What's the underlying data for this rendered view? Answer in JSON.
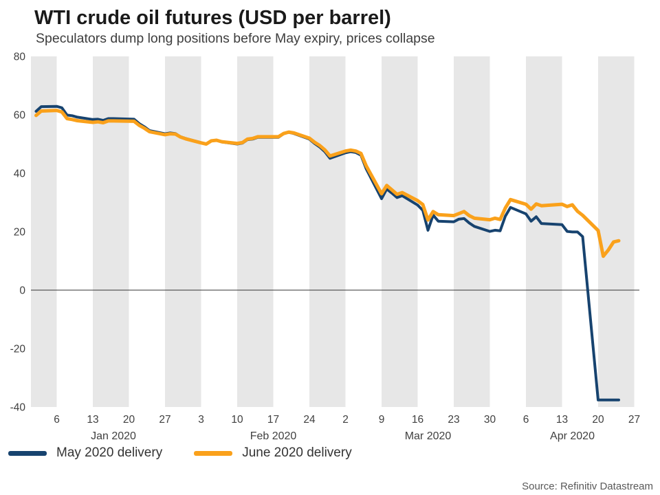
{
  "header": {
    "title": "WTI crude oil futures (USD per barrel)",
    "subtitle": "Speculators dump long positions before May expiry, prices collapse"
  },
  "source": "Source: Refinitiv Datastream",
  "chart_data": {
    "type": "line",
    "title": "WTI crude oil futures (USD per barrel)",
    "subtitle": "Speculators dump long positions before May expiry, prices collapse",
    "ylim": [
      -40,
      80
    ],
    "yticks": [
      80,
      60,
      40,
      20,
      0,
      -20,
      -40
    ],
    "grid": "alternating weekly vertical bands",
    "legend_position": "bottom-left",
    "colors": {
      "band": "#e7e7e7",
      "zero_line": "#333333",
      "tick_text": "#404040"
    },
    "xticks": [
      {
        "label": "6",
        "date": "Jan 6"
      },
      {
        "label": "13",
        "date": "Jan 13"
      },
      {
        "label": "20",
        "date": "Jan 20"
      },
      {
        "label": "27",
        "date": "Jan 27"
      },
      {
        "label": "3",
        "date": "Feb 3"
      },
      {
        "label": "10",
        "date": "Feb 10"
      },
      {
        "label": "17",
        "date": "Feb 17"
      },
      {
        "label": "24",
        "date": "Feb 24"
      },
      {
        "label": "2",
        "date": "Mar 2"
      },
      {
        "label": "9",
        "date": "Mar 9"
      },
      {
        "label": "16",
        "date": "Mar 16"
      },
      {
        "label": "23",
        "date": "Mar 23"
      },
      {
        "label": "30",
        "date": "Mar 30"
      },
      {
        "label": "6",
        "date": "Apr 6"
      },
      {
        "label": "13",
        "date": "Apr 13"
      },
      {
        "label": "20",
        "date": "Apr 20"
      },
      {
        "label": "27",
        "date": "Apr 27"
      }
    ],
    "month_labels": [
      {
        "label": "Jan 2020",
        "date": "Jan 17"
      },
      {
        "label": "Feb 2020",
        "date": "Feb 17"
      },
      {
        "label": "Mar 2020",
        "date": "Mar 18"
      },
      {
        "label": "Apr 2020",
        "date": "Apr 15"
      }
    ],
    "dates": [
      "Jan 2",
      "Jan 3",
      "Jan 6",
      "Jan 7",
      "Jan 8",
      "Jan 9",
      "Jan 10",
      "Jan 13",
      "Jan 14",
      "Jan 15",
      "Jan 16",
      "Jan 17",
      "Jan 21",
      "Jan 22",
      "Jan 23",
      "Jan 24",
      "Jan 27",
      "Jan 28",
      "Jan 29",
      "Jan 30",
      "Jan 31",
      "Feb 3",
      "Feb 4",
      "Feb 5",
      "Feb 6",
      "Feb 7",
      "Feb 10",
      "Feb 11",
      "Feb 12",
      "Feb 13",
      "Feb 14",
      "Feb 18",
      "Feb 19",
      "Feb 20",
      "Feb 21",
      "Feb 24",
      "Feb 25",
      "Feb 26",
      "Feb 27",
      "Feb 28",
      "Mar 2",
      "Mar 3",
      "Mar 4",
      "Mar 5",
      "Mar 6",
      "Mar 9",
      "Mar 10",
      "Mar 11",
      "Mar 12",
      "Mar 13",
      "Mar 16",
      "Mar 17",
      "Mar 18",
      "Mar 19",
      "Mar 20",
      "Mar 23",
      "Mar 24",
      "Mar 25",
      "Mar 26",
      "Mar 27",
      "Mar 30",
      "Mar 31",
      "Apr 1",
      "Apr 2",
      "Apr 3",
      "Apr 6",
      "Apr 7",
      "Apr 8",
      "Apr 9",
      "Apr 13",
      "Apr 14",
      "Apr 15",
      "Apr 16",
      "Apr 17",
      "Apr 20",
      "Apr 21",
      "Apr 22",
      "Apr 23",
      "Apr 24"
    ],
    "series": [
      {
        "name": "May 2020 delivery",
        "color": "#17436f",
        "values": [
          61.2,
          62.8,
          62.9,
          62.4,
          59.9,
          59.7,
          59.2,
          58.4,
          58.5,
          58.1,
          58.7,
          58.7,
          58.5,
          57.0,
          55.9,
          54.6,
          53.5,
          53.8,
          53.6,
          52.5,
          51.9,
          50.5,
          50.0,
          51.1,
          51.3,
          50.7,
          50.0,
          50.3,
          51.5,
          51.7,
          52.3,
          52.3,
          53.5,
          54.0,
          53.6,
          51.7,
          50.2,
          49.0,
          47.4,
          45.1,
          47.0,
          47.4,
          47.1,
          46.2,
          41.6,
          31.3,
          34.6,
          33.2,
          31.7,
          32.3,
          29.1,
          27.3,
          20.5,
          25.7,
          23.6,
          23.4,
          24.3,
          24.5,
          23.0,
          21.8,
          20.1,
          20.5,
          20.3,
          25.3,
          28.3,
          26.1,
          23.6,
          25.1,
          22.8,
          22.4,
          20.1,
          19.9,
          19.9,
          18.3,
          -37.6,
          -37.6,
          -37.6,
          -37.6,
          -37.6
        ]
      },
      {
        "name": "June 2020 delivery",
        "color": "#faa11b",
        "values": [
          59.8,
          61.3,
          61.5,
          61.0,
          58.7,
          58.4,
          58.0,
          57.4,
          57.6,
          57.3,
          57.9,
          57.9,
          57.8,
          56.4,
          55.4,
          54.2,
          53.2,
          53.5,
          53.4,
          52.4,
          51.8,
          50.4,
          50.0,
          51.1,
          51.3,
          50.8,
          50.2,
          50.5,
          51.7,
          51.9,
          52.5,
          52.5,
          53.6,
          54.1,
          53.8,
          52.0,
          50.6,
          49.5,
          48.0,
          45.9,
          47.6,
          47.9,
          47.6,
          46.8,
          42.6,
          33.0,
          35.8,
          34.3,
          32.8,
          33.4,
          30.6,
          29.3,
          24.0,
          26.9,
          25.8,
          25.5,
          26.2,
          26.9,
          25.5,
          24.6,
          24.1,
          24.6,
          24.2,
          28.1,
          31.0,
          29.4,
          27.7,
          29.5,
          28.9,
          29.4,
          28.6,
          29.2,
          27.0,
          25.6,
          20.4,
          11.6,
          13.8,
          16.5,
          16.9
        ]
      }
    ]
  }
}
